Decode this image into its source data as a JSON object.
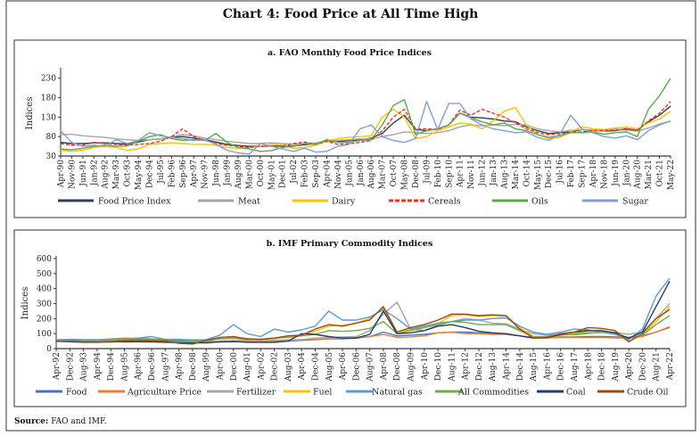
{
  "title": "Chart 4: Food Price at All Time High",
  "source_label": "Source:",
  "source_text": " FAO and IMF.",
  "chart_data": [
    {
      "type": "line",
      "title": "a. FAO Monthly Food Price Indices",
      "ylabel": "Indices",
      "ylim": [
        30,
        250
      ],
      "yticks": [
        30,
        80,
        130,
        180,
        230
      ],
      "grid": false,
      "legend": "bottom",
      "x": [
        "Apr-90",
        "Nov-90",
        "Jun-91",
        "Jan-92",
        "Aug-92",
        "Mar-93",
        "Oct-93",
        "May-94",
        "Dec-94",
        "Jul-95",
        "Feb-96",
        "Sep-96",
        "Apr-97",
        "Nov-97",
        "Jun-98",
        "Jan-99",
        "Aug-99",
        "Mar-00",
        "Oct-00",
        "May-01",
        "Dec-01",
        "Jul-02",
        "Feb-03",
        "Sep-03",
        "Apr-04",
        "Nov-04",
        "Jun-05",
        "Jan-06",
        "Aug-06",
        "Mar-07",
        "Oct-07",
        "May-08",
        "Dec-08",
        "Jul-09",
        "Feb-10",
        "Sep-10",
        "Apr-11",
        "Nov-11",
        "Jun-12",
        "Jan-13",
        "Aug-13",
        "Mar-14",
        "Oct-14",
        "May-15",
        "Dec-15",
        "Jul-16",
        "Feb-17",
        "Sep-17",
        "Apr-18",
        "Nov-18",
        "Jun-19",
        "Jan-20",
        "Aug-20",
        "Mar-21",
        "Oct-21",
        "May-22"
      ],
      "series": [
        {
          "name": "Food Price Index",
          "color": "#2e3f55",
          "dashed": false,
          "values": [
            65,
            62,
            62,
            64,
            64,
            62,
            61,
            66,
            72,
            74,
            78,
            80,
            76,
            72,
            66,
            60,
            57,
            55,
            55,
            56,
            55,
            56,
            59,
            62,
            68,
            67,
            70,
            72,
            76,
            88,
            115,
            135,
            98,
            95,
            100,
            110,
            140,
            130,
            128,
            125,
            120,
            118,
            105,
            95,
            88,
            90,
            92,
            98,
            96,
            94,
            95,
            100,
            96,
            118,
            135,
            158
          ]
        },
        {
          "name": "Meat",
          "color": "#a6a6a6",
          "dashed": false,
          "values": [
            85,
            86,
            82,
            80,
            78,
            74,
            72,
            70,
            72,
            74,
            80,
            85,
            82,
            76,
            72,
            68,
            65,
            62,
            62,
            64,
            62,
            60,
            62,
            64,
            68,
            70,
            72,
            74,
            74,
            80,
            85,
            92,
            90,
            88,
            90,
            95,
            105,
            110,
            108,
            110,
            108,
            112,
            110,
            100,
            95,
            92,
            96,
            98,
            96,
            94,
            100,
            96,
            94,
            102,
            112,
            120
          ]
        },
        {
          "name": "Dairy",
          "color": "#ffc000",
          "dashed": false,
          "values": [
            45,
            42,
            45,
            52,
            55,
            52,
            45,
            48,
            60,
            62,
            64,
            62,
            60,
            60,
            58,
            52,
            50,
            52,
            55,
            60,
            58,
            50,
            52,
            58,
            68,
            75,
            78,
            80,
            82,
            130,
            150,
            130,
            75,
            80,
            95,
            105,
            115,
            112,
            100,
            120,
            145,
            155,
            110,
            85,
            75,
            78,
            92,
            105,
            100,
            98,
            102,
            104,
            100,
            115,
            125,
            145
          ]
        },
        {
          "name": "Cereals",
          "color": "#ff2a1a",
          "dashed": true,
          "values": [
            62,
            58,
            58,
            65,
            62,
            60,
            58,
            60,
            62,
            68,
            80,
            100,
            80,
            70,
            62,
            58,
            55,
            52,
            55,
            56,
            56,
            62,
            66,
            60,
            68,
            60,
            62,
            65,
            70,
            95,
            130,
            150,
            100,
            100,
            98,
            110,
            148,
            135,
            150,
            140,
            130,
            115,
            100,
            90,
            85,
            88,
            90,
            92,
            95,
            96,
            96,
            100,
            96,
            120,
            140,
            170
          ]
        },
        {
          "name": "Oils",
          "color": "#5aab46",
          "dashed": false,
          "values": [
            48,
            46,
            50,
            55,
            58,
            55,
            56,
            68,
            80,
            85,
            75,
            70,
            72,
            70,
            88,
            65,
            52,
            48,
            42,
            44,
            52,
            55,
            62,
            60,
            72,
            65,
            66,
            70,
            72,
            110,
            160,
            175,
            85,
            95,
            100,
            110,
            140,
            128,
            118,
            110,
            115,
            100,
            95,
            85,
            78,
            82,
            90,
            90,
            92,
            86,
            90,
            92,
            80,
            150,
            185,
            230
          ]
        },
        {
          "name": "Sugar",
          "color": "#7f9fd6",
          "dashed": false,
          "values": [
            95,
            65,
            55,
            58,
            55,
            72,
            62,
            70,
            90,
            82,
            78,
            75,
            70,
            72,
            60,
            45,
            38,
            35,
            62,
            55,
            48,
            42,
            50,
            40,
            42,
            55,
            60,
            100,
            110,
            80,
            70,
            65,
            75,
            170,
            98,
            165,
            165,
            125,
            110,
            100,
            95,
            90,
            92,
            78,
            70,
            85,
            135,
            100,
            90,
            80,
            76,
            82,
            72,
            95,
            110,
            120
          ]
        }
      ]
    },
    {
      "type": "line",
      "title": "b. IMF Primary Commodity Indices",
      "ylabel": "Indices",
      "ylim": [
        0,
        600
      ],
      "yticks": [
        0,
        100,
        200,
        300,
        400,
        500,
        600
      ],
      "grid": false,
      "legend": "bottom",
      "x": [
        "Apr-92",
        "Dec-92",
        "Aug-93",
        "Apr-94",
        "Dec-94",
        "Aug-95",
        "Apr-96",
        "Dec-96",
        "Aug-97",
        "Apr-98",
        "Dec-98",
        "Aug-99",
        "Apr-00",
        "Dec-00",
        "Aug-01",
        "Apr-02",
        "Dec-02",
        "Aug-03",
        "Apr-04",
        "Dec-04",
        "Aug-05",
        "Apr-06",
        "Dec-06",
        "Aug-07",
        "Apr-08",
        "Dec-08",
        "Aug-09",
        "Apr-10",
        "Dec-10",
        "Aug-11",
        "Apr-12",
        "Dec-12",
        "Aug-13",
        "Apr-14",
        "Dec-14",
        "Aug-15",
        "Apr-16",
        "Dec-16",
        "Aug-17",
        "Apr-18",
        "Dec-18",
        "Aug-19",
        "Apr-20",
        "Dec-20",
        "Aug-21",
        "Apr-22"
      ],
      "series": [
        {
          "name": "Food",
          "color": "#4472c4",
          "dashed": false,
          "values": [
            50,
            50,
            48,
            48,
            50,
            55,
            58,
            55,
            52,
            50,
            48,
            45,
            45,
            45,
            48,
            48,
            48,
            50,
            55,
            60,
            65,
            65,
            70,
            80,
            110,
            85,
            90,
            95,
            105,
            110,
            110,
            105,
            100,
            95,
            85,
            75,
            75,
            78,
            78,
            80,
            80,
            78,
            75,
            85,
            110,
            145
          ]
        },
        {
          "name": "Agriculture Price",
          "color": "#ed7d31",
          "dashed": false,
          "values": [
            55,
            55,
            55,
            58,
            65,
            70,
            68,
            65,
            62,
            58,
            52,
            48,
            50,
            50,
            50,
            52,
            55,
            58,
            60,
            62,
            65,
            68,
            75,
            80,
            95,
            75,
            78,
            85,
            105,
            110,
            100,
            100,
            95,
            95,
            85,
            72,
            72,
            75,
            75,
            75,
            75,
            72,
            68,
            80,
            110,
            140
          ]
        },
        {
          "name": "Fertilizer",
          "color": "#a5a5a5",
          "dashed": false,
          "values": [
            50,
            48,
            45,
            48,
            55,
            65,
            70,
            65,
            62,
            58,
            52,
            48,
            50,
            52,
            55,
            50,
            52,
            55,
            60,
            70,
            75,
            78,
            80,
            120,
            230,
            310,
            130,
            120,
            155,
            180,
            200,
            190,
            170,
            165,
            130,
            100,
            90,
            95,
            92,
            100,
            110,
            108,
            95,
            110,
            200,
            300
          ]
        },
        {
          "name": "Fuel",
          "color": "#ffc000",
          "dashed": false,
          "values": [
            50,
            48,
            45,
            45,
            42,
            48,
            55,
            50,
            48,
            40,
            35,
            55,
            70,
            75,
            68,
            60,
            65,
            85,
            90,
            115,
            150,
            155,
            170,
            200,
            270,
            100,
            130,
            140,
            165,
            220,
            225,
            215,
            220,
            220,
            140,
            80,
            75,
            90,
            100,
            115,
            120,
            100,
            50,
            90,
            180,
            280
          ]
        },
        {
          "name": "Natural gas",
          "color": "#5b9bd5",
          "dashed": false,
          "values": [
            60,
            62,
            60,
            60,
            58,
            62,
            70,
            80,
            62,
            62,
            58,
            60,
            90,
            160,
            100,
            80,
            130,
            110,
            125,
            150,
            250,
            190,
            190,
            210,
            260,
            200,
            130,
            150,
            170,
            180,
            190,
            190,
            200,
            205,
            150,
            110,
            95,
            110,
            130,
            125,
            110,
            95,
            60,
            130,
            350,
            470
          ]
        },
        {
          "name": "All Commodities",
          "color": "#70ad47",
          "dashed": false,
          "values": [
            55,
            55,
            55,
            55,
            60,
            62,
            65,
            62,
            60,
            55,
            50,
            52,
            65,
            68,
            62,
            62,
            70,
            75,
            85,
            95,
            120,
            115,
            120,
            135,
            180,
            100,
            120,
            140,
            160,
            180,
            175,
            160,
            160,
            160,
            120,
            80,
            80,
            90,
            95,
            105,
            108,
            100,
            70,
            90,
            160,
            220
          ]
        },
        {
          "name": "Coal",
          "color": "#1f3f6f",
          "dashed": false,
          "values": [
            48,
            48,
            45,
            45,
            46,
            45,
            46,
            45,
            42,
            40,
            38,
            38,
            45,
            48,
            42,
            42,
            42,
            50,
            100,
            95,
            80,
            70,
            70,
            95,
            250,
            100,
            105,
            120,
            150,
            160,
            140,
            115,
            105,
            100,
            85,
            70,
            72,
            95,
            110,
            120,
            120,
            105,
            70,
            110,
            280,
            450
          ]
        },
        {
          "name": "Crude Oil",
          "color": "#9e480e",
          "dashed": false,
          "values": [
            50,
            45,
            42,
            42,
            45,
            50,
            55,
            50,
            50,
            35,
            30,
            55,
            75,
            80,
            65,
            62,
            70,
            85,
            90,
            130,
            160,
            150,
            170,
            190,
            280,
            110,
            140,
            160,
            190,
            230,
            230,
            220,
            225,
            220,
            130,
            70,
            75,
            100,
            110,
            140,
            135,
            120,
            45,
            100,
            200,
            260
          ]
        }
      ]
    }
  ]
}
